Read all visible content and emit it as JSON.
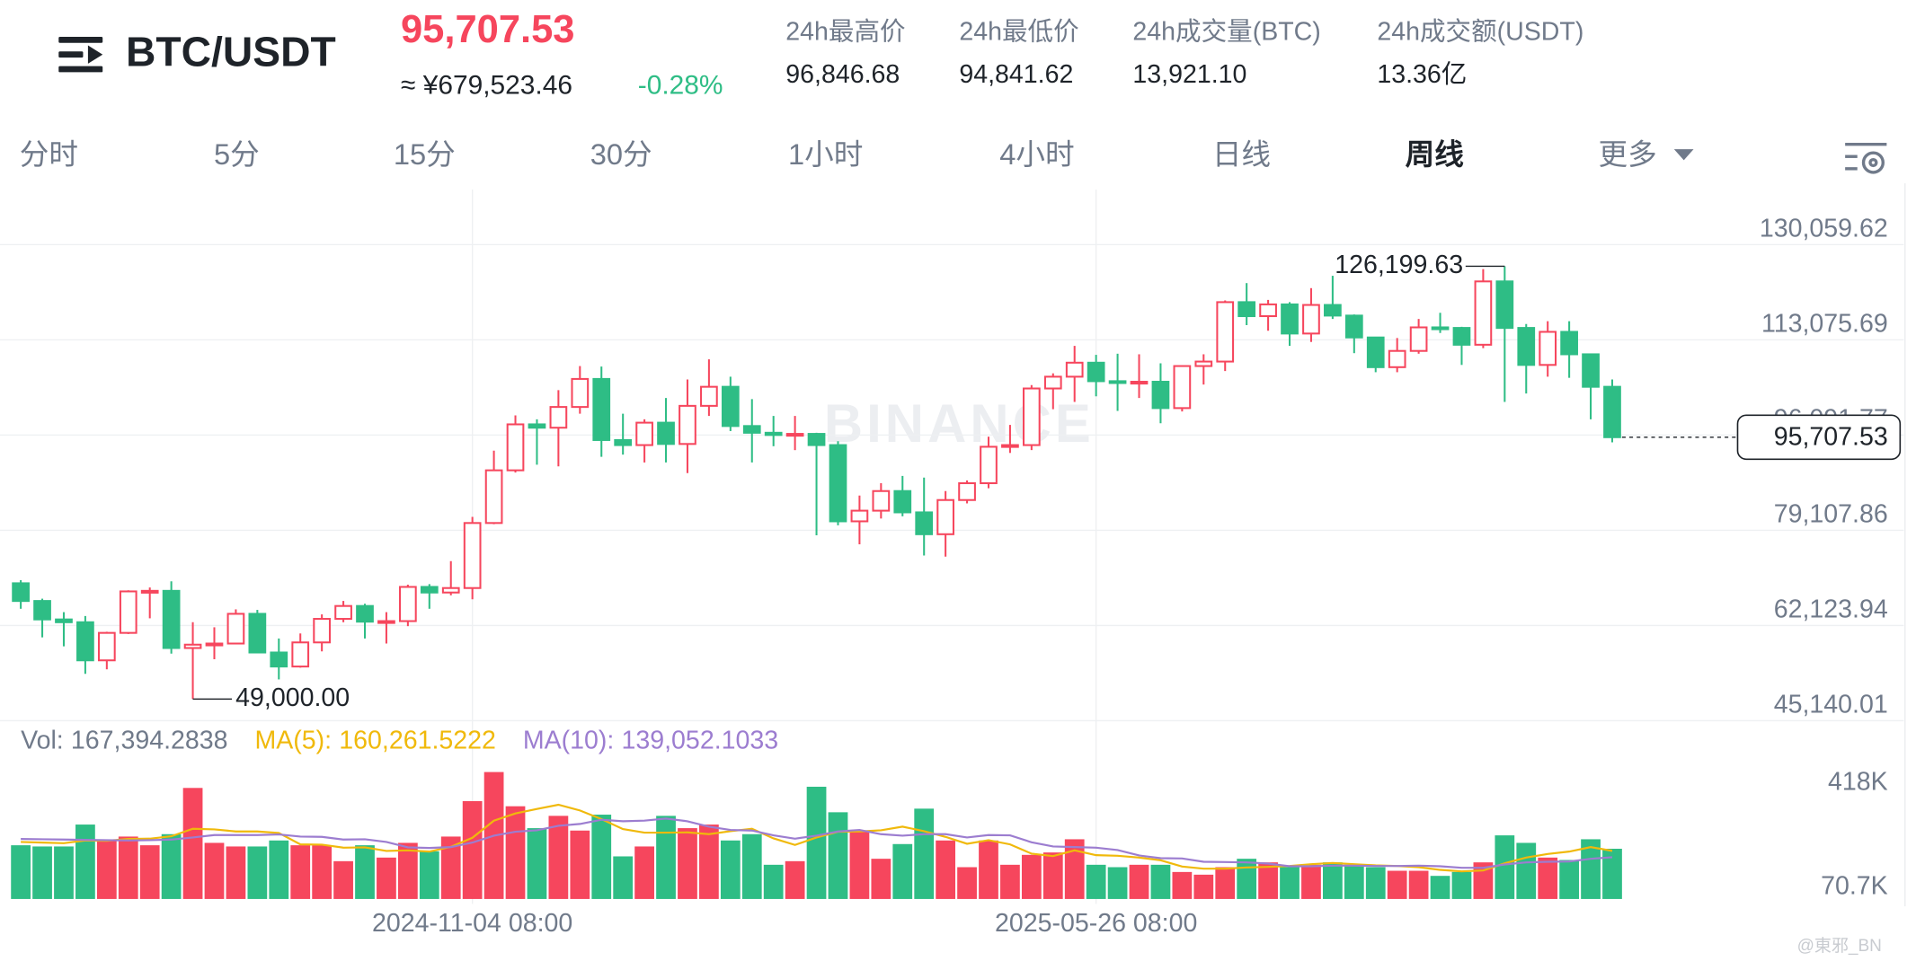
{
  "header": {
    "title": "BTC/USDT",
    "price": "95,707.53",
    "price_cny": "≈ ¥679,523.46",
    "change": "-0.28%",
    "stats": [
      {
        "label": "24h最高价",
        "value": "96,846.68"
      },
      {
        "label": "24h最低价",
        "value": "94,841.62"
      },
      {
        "label": "24h成交量(BTC)",
        "value": "13,921.10"
      },
      {
        "label": "24h成交额(USDT)",
        "value": "13.36亿"
      }
    ]
  },
  "tabs": {
    "items": [
      "分时",
      "5分",
      "15分",
      "30分",
      "1小时",
      "4小时",
      "日线",
      "周线",
      "更多"
    ],
    "active": 7
  },
  "credit": "@東邪_BN",
  "chart_data": [
    {
      "type": "candlestick",
      "categories": [
        null,
        null,
        null,
        null,
        null,
        null,
        null,
        null,
        null,
        null,
        null,
        null,
        null,
        null,
        null,
        null,
        null,
        null,
        null,
        null,
        null,
        "2024-11-04 08:00",
        null,
        null,
        null,
        null,
        null,
        null,
        null,
        null,
        null,
        null,
        null,
        null,
        null,
        null,
        null,
        null,
        null,
        null,
        null,
        null,
        null,
        null,
        null,
        null,
        null,
        null,
        null,
        null,
        "2025-05-26 08:00",
        null,
        null,
        null,
        null,
        null,
        null,
        null,
        null,
        null,
        null,
        null,
        null,
        null,
        null,
        null,
        null,
        null,
        null,
        null,
        null,
        null,
        null,
        null,
        null
      ],
      "open": [
        69650,
        66490,
        63200,
        62700,
        55900,
        60800,
        68200,
        68300,
        58100,
        58700,
        58900,
        64200,
        57300,
        54800,
        59100,
        63300,
        65600,
        62800,
        62900,
        69000,
        68000,
        68800,
        80400,
        89800,
        98000,
        97400,
        101100,
        106100,
        95200,
        94300,
        98300,
        94500,
        101300,
        104700,
        97700,
        96500,
        96100,
        96300,
        94300,
        80700,
        82600,
        86100,
        82300,
        78400,
        84500,
        87500,
        94000,
        94300,
        104400,
        106500,
        109000,
        105700,
        105600,
        105600,
        100900,
        108400,
        109200,
        119800,
        117300,
        119400,
        114200,
        119300,
        117400,
        113500,
        108200,
        111100,
        115300,
        115200,
        112200,
        123500,
        115200,
        108600,
        114500,
        110500,
        104700
      ],
      "high": [
        70200,
        66900,
        64500,
        63800,
        61000,
        68400,
        68900,
        70000,
        62700,
        61800,
        65000,
        64900,
        59800,
        60700,
        64100,
        66500,
        66000,
        64500,
        69400,
        69500,
        73600,
        81500,
        93300,
        99600,
        98900,
        104100,
        108400,
        108300,
        99900,
        98900,
        102700,
        106000,
        109600,
        106500,
        102500,
        99500,
        99500,
        96500,
        95000,
        85300,
        87500,
        88800,
        88500,
        86100,
        88000,
        95800,
        97900,
        105000,
        107100,
        112000,
        110400,
        110600,
        110500,
        108900,
        108500,
        110500,
        120100,
        123200,
        120200,
        119800,
        122300,
        124500,
        117600,
        113600,
        113400,
        116800,
        117900,
        115400,
        125700,
        126199.63,
        115900,
        116400,
        116400,
        110600,
        106000
      ],
      "low": [
        65100,
        60000,
        58400,
        53500,
        54300,
        60600,
        63400,
        57100,
        49000,
        56100,
        58800,
        57200,
        52500,
        54600,
        57500,
        62700,
        59800,
        58900,
        62000,
        65100,
        67500,
        66800,
        80200,
        89400,
        90800,
        90500,
        99900,
        92200,
        92600,
        91200,
        91200,
        89300,
        99500,
        96800,
        91200,
        94100,
        93400,
        78200,
        80000,
        76600,
        81200,
        81600,
        74600,
        74400,
        83900,
        86600,
        92900,
        93400,
        100700,
        102000,
        103000,
        100400,
        102700,
        98200,
        100300,
        105100,
        107500,
        115700,
        114700,
        112000,
        112700,
        116800,
        110700,
        107300,
        107300,
        110600,
        114300,
        108600,
        111600,
        102000,
        103500,
        106500,
        106300,
        98900,
        94800
      ],
      "close": [
        66490,
        63200,
        62700,
        55900,
        60800,
        68200,
        68300,
        58100,
        58700,
        58900,
        64200,
        57300,
        54800,
        59100,
        63300,
        65600,
        62800,
        62900,
        69000,
        68000,
        68800,
        80400,
        89800,
        98000,
        97400,
        101100,
        106100,
        95200,
        94300,
        98300,
        94500,
        101300,
        104700,
        97700,
        96500,
        96100,
        96300,
        94300,
        80700,
        82600,
        86100,
        82300,
        78400,
        84500,
        87500,
        94000,
        94300,
        104400,
        106500,
        109000,
        105700,
        105600,
        105600,
        100900,
        108400,
        109200,
        119800,
        117300,
        119400,
        114200,
        119300,
        117400,
        113500,
        108200,
        111100,
        115300,
        115200,
        112200,
        123500,
        115200,
        108600,
        114500,
        110500,
        104700,
        95707.53
      ],
      "up_color": "#f6465d",
      "down_color": "#2ebd85",
      "ylim": [
        44700,
        139900
      ],
      "yticks": [
        {
          "value": 45140.01,
          "label": "45,140.01"
        },
        {
          "value": 62123.94,
          "label": "62,123.94"
        },
        {
          "value": 79107.86,
          "label": "79,107.86"
        },
        {
          "value": 96091.77,
          "label": "96,091.77"
        },
        {
          "value": 113075.69,
          "label": "113,075.69"
        },
        {
          "value": 130059.62,
          "label": "130,059.62"
        }
      ],
      "grid": true,
      "watermark": "BINANCE",
      "annotations": [
        {
          "value": 126199.63,
          "label": "126,199.63"
        },
        {
          "value": 49000,
          "label": "49,000.00"
        }
      ],
      "last_price_label": "95,707.53"
    },
    {
      "type": "bar",
      "series": [
        {
          "name": "Vol:",
          "color": "#707a8a",
          "last_label": "167,394.2838",
          "values": [
            179000,
            175000,
            175000,
            248000,
            195000,
            208000,
            179000,
            216000,
            370000,
            187000,
            175000,
            175000,
            195000,
            179000,
            179000,
            126000,
            179000,
            138000,
            187000,
            159000,
            208000,
            326000,
            423000,
            309000,
            236000,
            277000,
            228000,
            281000,
            142000,
            175000,
            277000,
            236000,
            248000,
            195000,
            216000,
            114000,
            126000,
            374000,
            289000,
            224000,
            134000,
            183000,
            301000,
            195000,
            106000,
            195000,
            114000,
            147000,
            155000,
            199000,
            114000,
            106000,
            114000,
            114000,
            90000,
            81000,
            106000,
            134000,
            122000,
            106000,
            114000,
            122000,
            114000,
            106000,
            94000,
            94000,
            77000,
            90000,
            122000,
            212000,
            187000,
            138000,
            130000,
            199000,
            167394.2838
          ]
        },
        {
          "name": "MA(5):",
          "color": "#f0b90b",
          "type": "line",
          "last_label": "160,261.5222",
          "values": [
            190000,
            188000,
            186000,
            195000,
            194000,
            200000,
            201000,
            209000,
            234000,
            232000,
            225000,
            225000,
            220000,
            182000,
            181000,
            171000,
            172000,
            160000,
            162000,
            158000,
            174000,
            204000,
            261000,
            285000,
            300000,
            314000,
            295000,
            266000,
            233000,
            221000,
            221000,
            222000,
            216000,
            226000,
            234000,
            202000,
            180000,
            205000,
            224000,
            225000,
            229000,
            241000,
            226000,
            207000,
            184000,
            196000,
            182000,
            151000,
            143000,
            162000,
            146000,
            144000,
            138000,
            129000,
            108000,
            101000,
            101000,
            105000,
            107000,
            110000,
            116000,
            120000,
            116000,
            112000,
            110000,
            106000,
            97000,
            92000,
            95000,
            119000,
            138000,
            150000,
            158000,
            173000,
            160261.5222
          ]
        },
        {
          "name": "MA(10):",
          "color": "#9c7dd0",
          "type": "line",
          "last_label": "139,052.1033",
          "values": [
            200000,
            199000,
            198000,
            197000,
            196000,
            195000,
            196000,
            198000,
            205000,
            213000,
            213000,
            213000,
            215000,
            208000,
            207000,
            198000,
            199000,
            190000,
            172000,
            170000,
            173000,
            188000,
            211000,
            224000,
            229000,
            244000,
            250000,
            264000,
            259000,
            261000,
            268000,
            259000,
            241000,
            230000,
            228000,
            212000,
            201000,
            211000,
            225000,
            230000,
            216000,
            211000,
            216000,
            216000,
            205000,
            213000,
            212000,
            189000,
            175000,
            173000,
            171000,
            163000,
            145000,
            136000,
            135000,
            124000,
            123000,
            122000,
            118000,
            109000,
            109000,
            111000,
            111000,
            110000,
            110000,
            111000,
            109000,
            104000,
            104000,
            115000,
            122000,
            124000,
            125000,
            134000,
            139052.1033
          ]
        }
      ],
      "ylim": [
        0,
        472000
      ],
      "yticks": [
        {
          "value": 70700,
          "label": "70.7K"
        },
        {
          "value": 418000,
          "label": "418K"
        }
      ]
    }
  ]
}
